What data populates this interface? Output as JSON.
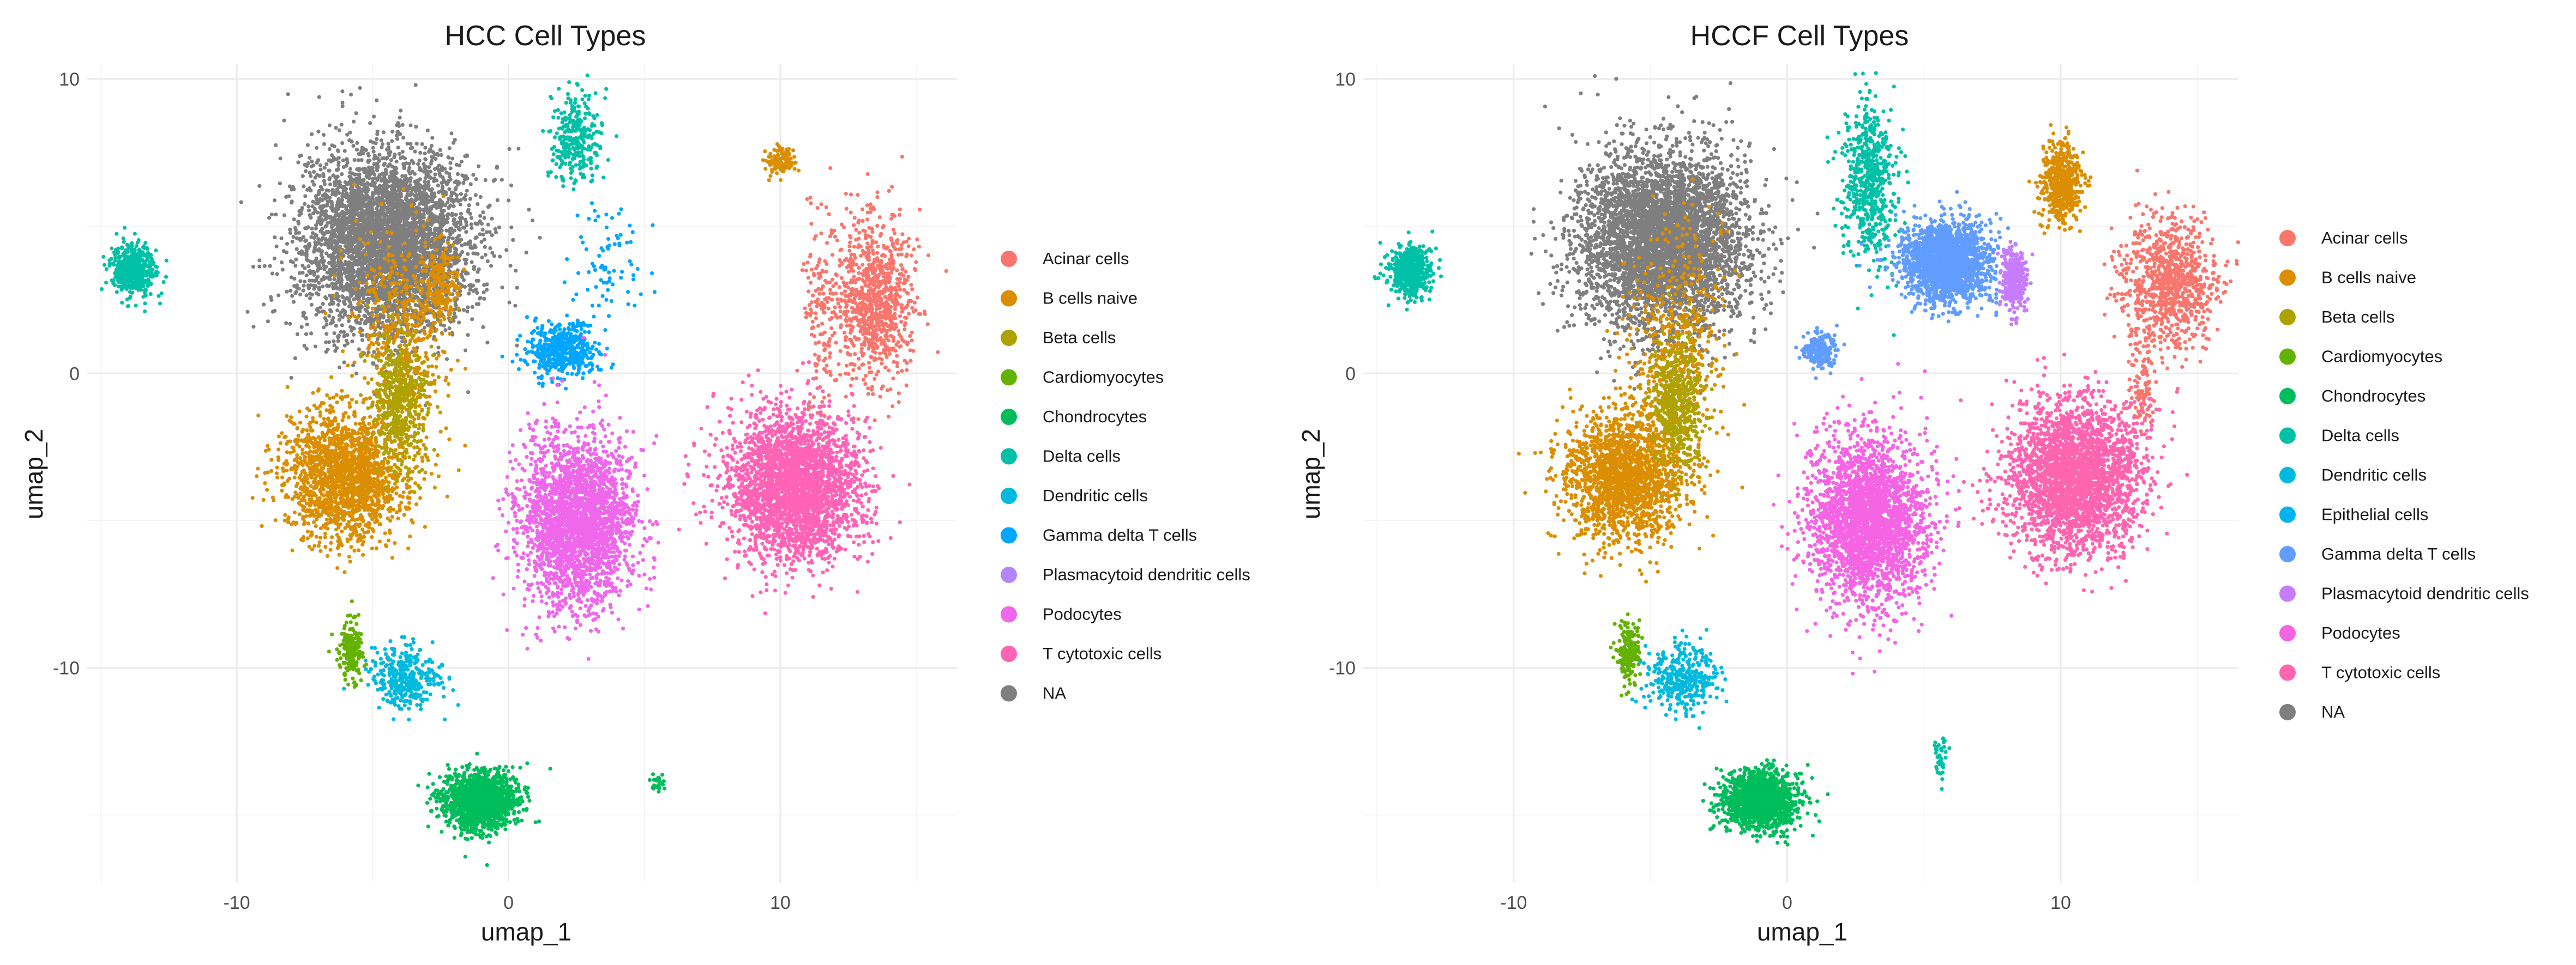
{
  "chart_data": [
    {
      "type": "scatter",
      "title": "HCC Cell Types",
      "xlabel": "umap_1",
      "ylabel": "umap_2",
      "xlim": [
        -15.5,
        16.5
      ],
      "ylim": [
        -17.3,
        10.5
      ],
      "xticks": [
        -10,
        0,
        10
      ],
      "yticks": [
        -10,
        0,
        10
      ],
      "grid": true,
      "legend_position": "right",
      "legend": [
        {
          "label": "Acinar cells",
          "color": "#F8766D"
        },
        {
          "label": "B cells naive",
          "color": "#DB8E00"
        },
        {
          "label": "Beta cells",
          "color": "#AEA200"
        },
        {
          "label": "Cardiomyocytes",
          "color": "#64B200"
        },
        {
          "label": "Chondrocytes",
          "color": "#00BD5C"
        },
        {
          "label": "Delta cells",
          "color": "#00C1A7"
        },
        {
          "label": "Dendritic cells",
          "color": "#00BADE"
        },
        {
          "label": "Gamma delta T cells",
          "color": "#00A6FF"
        },
        {
          "label": "Plasmacytoid dendritic cells",
          "color": "#B385FF"
        },
        {
          "label": "Podocytes",
          "color": "#EF67EB"
        },
        {
          "label": "T cytotoxic cells",
          "color": "#FF63B6"
        },
        {
          "label": "NA",
          "color": "#7F7F7F"
        }
      ],
      "clusters": [
        {
          "series": "NA",
          "center": [
            -4.5,
            4.5
          ],
          "spread": [
            2.8,
            2.8
          ],
          "n": 4500
        },
        {
          "series": "B cells naive",
          "center": [
            -6.0,
            -3.5
          ],
          "spread": [
            2.0,
            2.0
          ],
          "n": 1800
        },
        {
          "series": "B cells naive",
          "center": [
            -4.0,
            1.0
          ],
          "spread": [
            1.5,
            3.5
          ],
          "n": 500
        },
        {
          "series": "B cells naive",
          "center": [
            -2.5,
            3.0
          ],
          "spread": [
            0.6,
            1.2
          ],
          "n": 200
        },
        {
          "series": "Beta cells",
          "center": [
            -4.0,
            -1.0
          ],
          "spread": [
            0.9,
            2.0
          ],
          "n": 500
        },
        {
          "series": "Acinar cells",
          "center": [
            13.5,
            2.5
          ],
          "spread": [
            1.3,
            2.5
          ],
          "n": 900
        },
        {
          "series": "Acinar cells",
          "center": [
            11.5,
            2.0
          ],
          "spread": [
            0.6,
            3.0
          ],
          "n": 150
        },
        {
          "series": "B cells naive",
          "center": [
            10.0,
            7.2
          ],
          "spread": [
            0.5,
            0.5
          ],
          "n": 120
        },
        {
          "series": "Delta cells",
          "center": [
            -13.8,
            3.5
          ],
          "spread": [
            0.7,
            0.8
          ],
          "n": 500
        },
        {
          "series": "Delta cells",
          "center": [
            2.5,
            8.0
          ],
          "spread": [
            0.8,
            1.3
          ],
          "n": 300
        },
        {
          "series": "Gamma delta T cells",
          "center": [
            2.0,
            0.8
          ],
          "spread": [
            1.1,
            0.8
          ],
          "n": 500
        },
        {
          "series": "Gamma delta T cells",
          "center": [
            3.5,
            3.8
          ],
          "spread": [
            1.4,
            1.6
          ],
          "n": 80
        },
        {
          "series": "Podocytes",
          "center": [
            2.5,
            -5.0
          ],
          "spread": [
            1.9,
            2.6
          ],
          "n": 2600
        },
        {
          "series": "T cytotoxic cells",
          "center": [
            10.5,
            -3.8
          ],
          "spread": [
            2.2,
            2.3
          ],
          "n": 2800
        },
        {
          "series": "Cardiomyocytes",
          "center": [
            -5.8,
            -9.5
          ],
          "spread": [
            0.4,
            1.0
          ],
          "n": 180
        },
        {
          "series": "Dendritic cells",
          "center": [
            -3.8,
            -10.3
          ],
          "spread": [
            1.1,
            1.0
          ],
          "n": 350
        },
        {
          "series": "Chondrocytes",
          "center": [
            -1.0,
            -14.5
          ],
          "spread": [
            1.2,
            0.9
          ],
          "n": 1500
        },
        {
          "series": "Chondrocytes",
          "center": [
            5.5,
            -13.9
          ],
          "spread": [
            0.25,
            0.25
          ],
          "n": 25
        }
      ]
    },
    {
      "type": "scatter",
      "title": "HCCF Cell Types",
      "xlabel": "umap_1",
      "ylabel": "umap_2",
      "xlim": [
        -15.5,
        16.5
      ],
      "ylim": [
        -17.3,
        10.5
      ],
      "xticks": [
        -10,
        0,
        10
      ],
      "yticks": [
        -10,
        0,
        10
      ],
      "grid": true,
      "legend_position": "right",
      "legend": [
        {
          "label": "Acinar cells",
          "color": "#F8766D"
        },
        {
          "label": "B cells naive",
          "color": "#DB8E00"
        },
        {
          "label": "Beta cells",
          "color": "#AEA200"
        },
        {
          "label": "Cardiomyocytes",
          "color": "#64B200"
        },
        {
          "label": "Chondrocytes",
          "color": "#00BD5C"
        },
        {
          "label": "Delta cells",
          "color": "#00C1A7"
        },
        {
          "label": "Dendritic cells",
          "color": "#00BADE"
        },
        {
          "label": "Epithelial cells",
          "color": "#00B4F0"
        },
        {
          "label": "Gamma delta T cells",
          "color": "#619CFF"
        },
        {
          "label": "Plasmacytoid dendritic cells",
          "color": "#C77CFF"
        },
        {
          "label": "Podocytes",
          "color": "#F564E3"
        },
        {
          "label": "T cytotoxic cells",
          "color": "#FF64B0"
        },
        {
          "label": "NA",
          "color": "#7F7F7F"
        }
      ],
      "clusters": [
        {
          "series": "NA",
          "center": [
            -4.5,
            4.5
          ],
          "spread": [
            2.8,
            2.8
          ],
          "n": 4500
        },
        {
          "series": "B cells naive",
          "center": [
            -6.0,
            -3.5
          ],
          "spread": [
            2.0,
            2.0
          ],
          "n": 1800
        },
        {
          "series": "B cells naive",
          "center": [
            -4.0,
            1.0
          ],
          "spread": [
            1.5,
            3.5
          ],
          "n": 500
        },
        {
          "series": "Beta cells",
          "center": [
            -4.0,
            -1.0
          ],
          "spread": [
            0.9,
            2.0
          ],
          "n": 500
        },
        {
          "series": "B cells naive",
          "center": [
            10.0,
            6.5
          ],
          "spread": [
            0.7,
            1.2
          ],
          "n": 500
        },
        {
          "series": "Acinar cells",
          "center": [
            14.0,
            3.0
          ],
          "spread": [
            1.6,
            2.0
          ],
          "n": 900
        },
        {
          "series": "Acinar cells",
          "center": [
            13.0,
            -0.5
          ],
          "spread": [
            0.4,
            1.5
          ],
          "n": 100
        },
        {
          "series": "Delta cells",
          "center": [
            -13.8,
            3.5
          ],
          "spread": [
            0.7,
            0.8
          ],
          "n": 500
        },
        {
          "series": "Delta cells",
          "center": [
            3.0,
            6.5
          ],
          "spread": [
            0.9,
            2.5
          ],
          "n": 600
        },
        {
          "series": "Gamma delta T cells",
          "center": [
            5.8,
            3.8
          ],
          "spread": [
            1.4,
            1.2
          ],
          "n": 2000
        },
        {
          "series": "Gamma delta T cells",
          "center": [
            1.2,
            0.8
          ],
          "spread": [
            0.6,
            0.6
          ],
          "n": 200
        },
        {
          "series": "Plasmacytoid dendritic cells",
          "center": [
            8.3,
            3.2
          ],
          "spread": [
            0.4,
            0.9
          ],
          "n": 350
        },
        {
          "series": "Podocytes",
          "center": [
            3.0,
            -5.0
          ],
          "spread": [
            1.9,
            2.6
          ],
          "n": 2600
        },
        {
          "series": "T cytotoxic cells",
          "center": [
            10.5,
            -3.5
          ],
          "spread": [
            2.2,
            2.3
          ],
          "n": 2800
        },
        {
          "series": "Cardiomyocytes",
          "center": [
            -5.8,
            -9.5
          ],
          "spread": [
            0.4,
            1.0
          ],
          "n": 180
        },
        {
          "series": "Dendritic cells",
          "center": [
            -3.8,
            -10.3
          ],
          "spread": [
            1.1,
            1.0
          ],
          "n": 350
        },
        {
          "series": "Chondrocytes",
          "center": [
            -1.0,
            -14.5
          ],
          "spread": [
            1.2,
            0.9
          ],
          "n": 1500
        },
        {
          "series": "Delta cells",
          "center": [
            5.6,
            -13.0
          ],
          "spread": [
            0.25,
            0.7
          ],
          "n": 40
        }
      ]
    }
  ]
}
